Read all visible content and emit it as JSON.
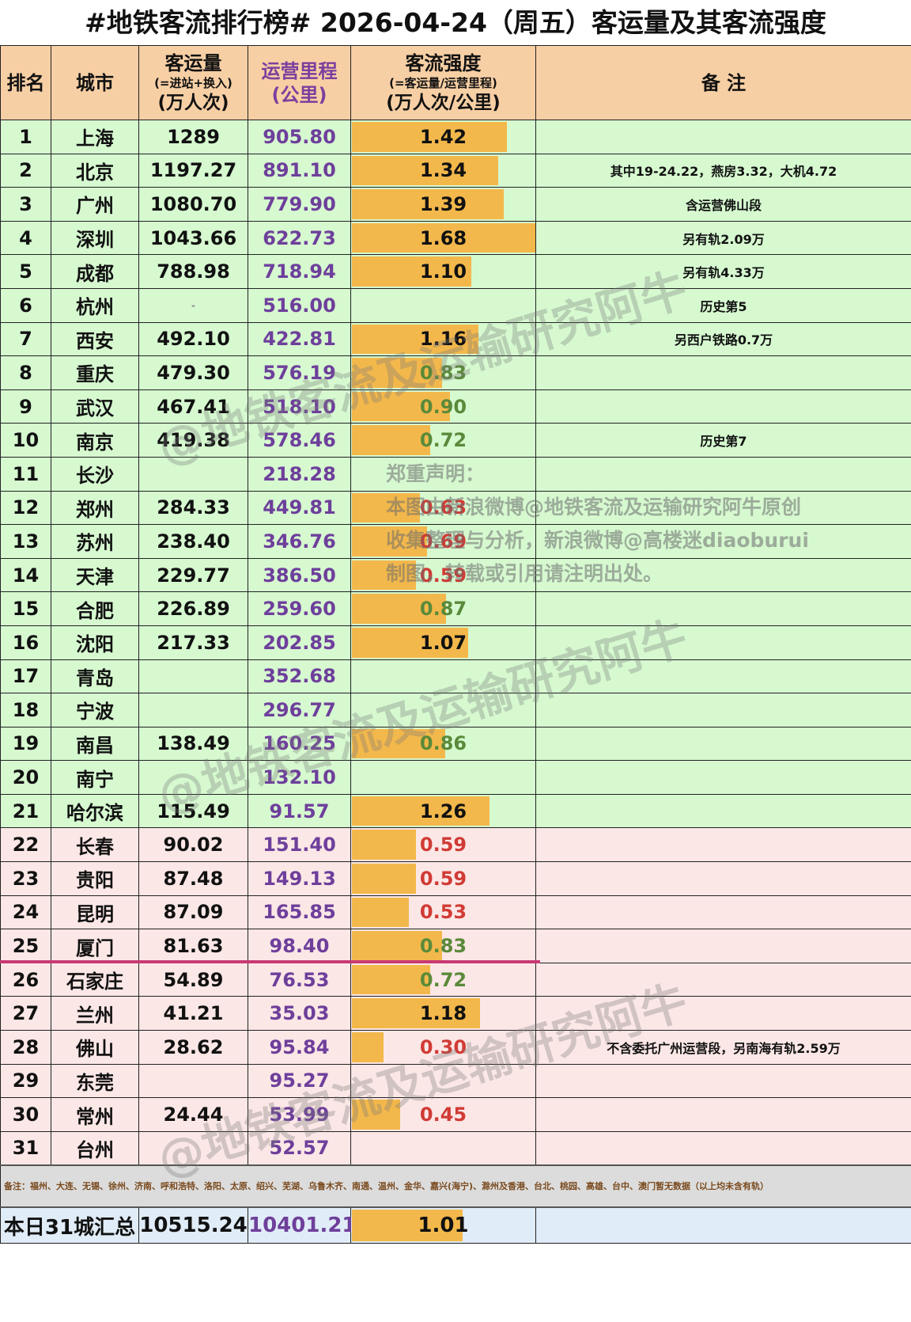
{
  "title": "#地铁客流排行榜# 2026-04-24（周五）客运量及其客流强度",
  "headers": {
    "rank": "排名",
    "city": "城市",
    "ridership_main": "客运量",
    "ridership_sub": "(=进站+换入)",
    "ridership_unit": "(万人次)",
    "length_main": "运营里程",
    "length_unit": "(公里)",
    "intensity_main": "客流强度",
    "intensity_sub": "(=客运量/运营里程)",
    "intensity_unit": "(万人次/公里)",
    "notes": "备 注"
  },
  "rows": [
    {
      "rank": "1",
      "city": "上海",
      "ridership": "1289",
      "length": "905.80",
      "intensity": "1.42",
      "note": "",
      "zone": "green"
    },
    {
      "rank": "2",
      "city": "北京",
      "ridership": "1197.27",
      "length": "891.10",
      "intensity": "1.34",
      "note": "其中19-24.22，燕房3.32，大机4.72",
      "zone": "green"
    },
    {
      "rank": "3",
      "city": "广州",
      "ridership": "1080.70",
      "length": "779.90",
      "intensity": "1.39",
      "note": "含运营佛山段",
      "zone": "green"
    },
    {
      "rank": "4",
      "city": "深圳",
      "ridership": "1043.66",
      "length": "622.73",
      "intensity": "1.68",
      "note": "另有轨2.09万",
      "zone": "green"
    },
    {
      "rank": "5",
      "city": "成都",
      "ridership": "788.98",
      "length": "718.94",
      "intensity": "1.10",
      "note": "另有轨4.33万",
      "zone": "green"
    },
    {
      "rank": "6",
      "city": "杭州",
      "ridership": "-",
      "length": "516.00",
      "intensity": "",
      "note": "历史第5",
      "zone": "green"
    },
    {
      "rank": "7",
      "city": "西安",
      "ridership": "492.10",
      "length": "422.81",
      "intensity": "1.16",
      "note": "另西户铁路0.7万",
      "zone": "green"
    },
    {
      "rank": "8",
      "city": "重庆",
      "ridership": "479.30",
      "length": "576.19",
      "intensity": "0.83",
      "note": "",
      "zone": "green"
    },
    {
      "rank": "9",
      "city": "武汉",
      "ridership": "467.41",
      "length": "518.10",
      "intensity": "0.90",
      "note": "",
      "zone": "green"
    },
    {
      "rank": "10",
      "city": "南京",
      "ridership": "419.38",
      "length": "578.46",
      "intensity": "0.72",
      "note": "历史第7",
      "zone": "green"
    },
    {
      "rank": "11",
      "city": "长沙",
      "ridership": "",
      "length": "218.28",
      "intensity": "",
      "note": "",
      "zone": "green"
    },
    {
      "rank": "12",
      "city": "郑州",
      "ridership": "284.33",
      "length": "449.81",
      "intensity": "0.63",
      "note": "",
      "zone": "green"
    },
    {
      "rank": "13",
      "city": "苏州",
      "ridership": "238.40",
      "length": "346.76",
      "intensity": "0.69",
      "note": "",
      "zone": "green"
    },
    {
      "rank": "14",
      "city": "天津",
      "ridership": "229.77",
      "length": "386.50",
      "intensity": "0.59",
      "note": "",
      "zone": "green"
    },
    {
      "rank": "15",
      "city": "合肥",
      "ridership": "226.89",
      "length": "259.60",
      "intensity": "0.87",
      "note": "",
      "zone": "green"
    },
    {
      "rank": "16",
      "city": "沈阳",
      "ridership": "217.33",
      "length": "202.85",
      "intensity": "1.07",
      "note": "",
      "zone": "green"
    },
    {
      "rank": "17",
      "city": "青岛",
      "ridership": "",
      "length": "352.68",
      "intensity": "",
      "note": "",
      "zone": "green"
    },
    {
      "rank": "18",
      "city": "宁波",
      "ridership": "",
      "length": "296.77",
      "intensity": "",
      "note": "",
      "zone": "green"
    },
    {
      "rank": "19",
      "city": "南昌",
      "ridership": "138.49",
      "length": "160.25",
      "intensity": "0.86",
      "note": "",
      "zone": "green"
    },
    {
      "rank": "20",
      "city": "南宁",
      "ridership": "",
      "length": "132.10",
      "intensity": "",
      "note": "",
      "zone": "green"
    },
    {
      "rank": "21",
      "city": "哈尔滨",
      "ridership": "115.49",
      "length": "91.57",
      "intensity": "1.26",
      "note": "",
      "zone": "green"
    },
    {
      "rank": "22",
      "city": "长春",
      "ridership": "90.02",
      "length": "151.40",
      "intensity": "0.59",
      "note": "",
      "zone": "pink"
    },
    {
      "rank": "23",
      "city": "贵阳",
      "ridership": "87.48",
      "length": "149.13",
      "intensity": "0.59",
      "note": "",
      "zone": "pink"
    },
    {
      "rank": "24",
      "city": "昆明",
      "ridership": "87.09",
      "length": "165.85",
      "intensity": "0.53",
      "note": "",
      "zone": "pink"
    },
    {
      "rank": "25",
      "city": "厦门",
      "ridership": "81.63",
      "length": "98.40",
      "intensity": "0.83",
      "note": "",
      "zone": "pink"
    },
    {
      "rank": "26",
      "city": "石家庄",
      "ridership": "54.89",
      "length": "76.53",
      "intensity": "0.72",
      "note": "",
      "zone": "pink"
    },
    {
      "rank": "27",
      "city": "兰州",
      "ridership": "41.21",
      "length": "35.03",
      "intensity": "1.18",
      "note": "",
      "zone": "pink"
    },
    {
      "rank": "28",
      "city": "佛山",
      "ridership": "28.62",
      "length": "95.84",
      "intensity": "0.30",
      "note": "不含委托广州运营段，另南海有轨2.59万",
      "zone": "pink"
    },
    {
      "rank": "29",
      "city": "东莞",
      "ridership": "",
      "length": "95.27",
      "intensity": "",
      "note": "",
      "zone": "pink"
    },
    {
      "rank": "30",
      "city": "常州",
      "ridership": "24.44",
      "length": "53.99",
      "intensity": "0.45",
      "note": "",
      "zone": "pink"
    },
    {
      "rank": "31",
      "city": "台州",
      "ridership": "",
      "length": "52.57",
      "intensity": "",
      "note": "",
      "zone": "pink"
    }
  ],
  "footnote": "备注：福州、大连、无锡、徐州、济南、呼和浩特、洛阳、太原、绍兴、芜湖、乌鲁木齐、南通、温州、金华、嘉兴(海宁)、滁州及香港、台北、桃园、高雄、台中、澳门暂无数据（以上均未含有轨）",
  "total": {
    "label": "本日31城汇总",
    "ridership": "10515.24",
    "length": "10401.21",
    "intensity": "1.01",
    "note": ""
  },
  "watermarks": {
    "handle": "@地铁客流及运输研究阿牛",
    "disclaimer_title": "郑重声明：",
    "disclaimer_line1": "本图由新浪微博@地铁客流及运输研究阿牛原创",
    "disclaimer_line2": "收集整理与分析，新浪微博@高楼迷diaoburui",
    "disclaimer_line3": "制图，转载或引用请注明出处。"
  },
  "colors": {
    "header_bg": "#f7cfa4",
    "green_zone": "#d6f9d0",
    "pink_zone": "#fbe7e6",
    "bar": "#f3b84b",
    "length_text": "#6e3f9b",
    "high_intensity_text": "#111111",
    "mid_intensity_text": "#5a8a3a",
    "low_intensity_text": "#d13b35",
    "divider_line": "#c83a74",
    "total_bg": "#e0ecf7",
    "footnote_bg": "#dcdcdc"
  },
  "chart_data": {
    "type": "table",
    "title": "#地铁客流排行榜# 2026-04-24（周五）客运量及其客流强度",
    "columns": [
      "排名",
      "城市",
      "客运量(万人次)",
      "运营里程(公里)",
      "客流强度(万人次/公里)",
      "备注"
    ],
    "categories": [
      "上海",
      "北京",
      "广州",
      "深圳",
      "成都",
      "杭州",
      "西安",
      "重庆",
      "武汉",
      "南京",
      "长沙",
      "郑州",
      "苏州",
      "天津",
      "合肥",
      "沈阳",
      "青岛",
      "宁波",
      "南昌",
      "南宁",
      "哈尔滨",
      "长春",
      "贵阳",
      "昆明",
      "厦门",
      "石家庄",
      "兰州",
      "佛山",
      "东莞",
      "常州",
      "台州"
    ],
    "series": [
      {
        "name": "客运量(万人次)",
        "values": [
          1289,
          1197.27,
          1080.7,
          1043.66,
          788.98,
          null,
          492.1,
          479.3,
          467.41,
          419.38,
          null,
          284.33,
          238.4,
          229.77,
          226.89,
          217.33,
          null,
          null,
          138.49,
          null,
          115.49,
          90.02,
          87.48,
          87.09,
          81.63,
          54.89,
          41.21,
          28.62,
          null,
          24.44,
          null
        ]
      },
      {
        "name": "运营里程(公里)",
        "values": [
          905.8,
          891.1,
          779.9,
          622.73,
          718.94,
          516.0,
          422.81,
          576.19,
          518.1,
          578.46,
          218.28,
          449.81,
          346.76,
          386.5,
          259.6,
          202.85,
          352.68,
          296.77,
          160.25,
          132.1,
          91.57,
          151.4,
          149.13,
          165.85,
          98.4,
          76.53,
          35.03,
          95.84,
          95.27,
          53.99,
          52.57
        ]
      },
      {
        "name": "客流强度(万人次/公里)",
        "values": [
          1.42,
          1.34,
          1.39,
          1.68,
          1.1,
          null,
          1.16,
          0.83,
          0.9,
          0.72,
          null,
          0.63,
          0.69,
          0.59,
          0.87,
          1.07,
          null,
          null,
          0.86,
          null,
          1.26,
          0.59,
          0.59,
          0.53,
          0.83,
          0.72,
          1.18,
          0.3,
          null,
          0.45,
          null
        ]
      }
    ],
    "totals": {
      "客运量": 10515.24,
      "运营里程": 10401.21,
      "客流强度": 1.01
    },
    "bar_column": "客流强度",
    "bar_max": 1.68
  }
}
